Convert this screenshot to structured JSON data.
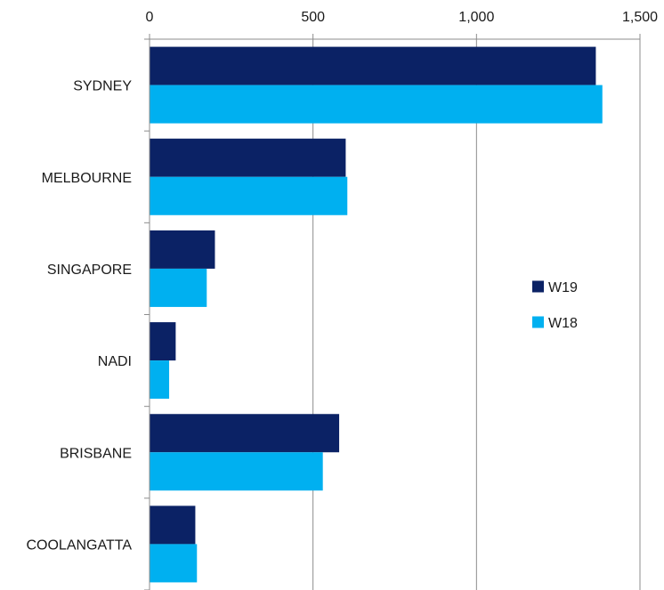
{
  "chart_data": {
    "type": "bar",
    "orientation": "horizontal",
    "categories": [
      "SYDNEY",
      "MELBOURNE",
      "SINGAPORE",
      "NADI",
      "BRISBANE",
      "COOLANGATTA"
    ],
    "series": [
      {
        "name": "W19",
        "color": "#0b2265",
        "values": [
          1365,
          600,
          200,
          80,
          580,
          140
        ]
      },
      {
        "name": "W18",
        "color": "#00b0f0",
        "values": [
          1385,
          605,
          175,
          60,
          530,
          145
        ]
      }
    ],
    "xlim": [
      0,
      1500
    ],
    "xticks": [
      0,
      500,
      1000,
      1500
    ],
    "xtick_labels": [
      "0",
      "500",
      "1,000",
      "1,500"
    ],
    "x_axis_position": "top",
    "grid": true,
    "legend_position": "right"
  }
}
